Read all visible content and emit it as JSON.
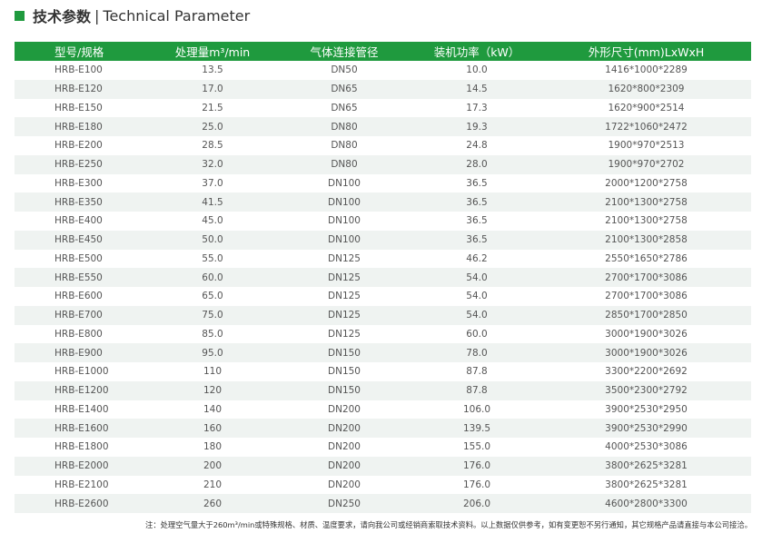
{
  "title": {
    "zh": "技术参数",
    "separator": "|",
    "en": "Technical Parameter"
  },
  "colors": {
    "accent": "#1f9a3e",
    "row_alt": "#eff3f1"
  },
  "table": {
    "headers": [
      "型号/规格",
      "处理量m³/min",
      "气体连接管径",
      "装机功率（kW）",
      "外形尺寸(mm)LxWxH"
    ],
    "rows": [
      [
        "HRB-E100",
        "13.5",
        "DN50",
        "10.0",
        "1416*1000*2289"
      ],
      [
        "HRB-E120",
        "17.0",
        "DN65",
        "14.5",
        "1620*800*2309"
      ],
      [
        "HRB-E150",
        "21.5",
        "DN65",
        "17.3",
        "1620*900*2514"
      ],
      [
        "HRB-E180",
        "25.0",
        "DN80",
        "19.3",
        "1722*1060*2472"
      ],
      [
        "HRB-E200",
        "28.5",
        "DN80",
        "24.8",
        "1900*970*2513"
      ],
      [
        "HRB-E250",
        "32.0",
        "DN80",
        "28.0",
        "1900*970*2702"
      ],
      [
        "HRB-E300",
        "37.0",
        "DN100",
        "36.5",
        "2000*1200*2758"
      ],
      [
        "HRB-E350",
        "41.5",
        "DN100",
        "36.5",
        "2100*1300*2758"
      ],
      [
        "HRB-E400",
        "45.0",
        "DN100",
        "36.5",
        "2100*1300*2758"
      ],
      [
        "HRB-E450",
        "50.0",
        "DN100",
        "36.5",
        "2100*1300*2858"
      ],
      [
        "HRB-E500",
        "55.0",
        "DN125",
        "46.2",
        "2550*1650*2786"
      ],
      [
        "HRB-E550",
        "60.0",
        "DN125",
        "54.0",
        "2700*1700*3086"
      ],
      [
        "HRB-E600",
        "65.0",
        "DN125",
        "54.0",
        "2700*1700*3086"
      ],
      [
        "HRB-E700",
        "75.0",
        "DN125",
        "54.0",
        "2850*1700*2850"
      ],
      [
        "HRB-E800",
        "85.0",
        "DN125",
        "60.0",
        "3000*1900*3026"
      ],
      [
        "HRB-E900",
        "95.0",
        "DN150",
        "78.0",
        "3000*1900*3026"
      ],
      [
        "HRB-E1000",
        "110",
        "DN150",
        "87.8",
        "3300*2200*2692"
      ],
      [
        "HRB-E1200",
        "120",
        "DN150",
        "87.8",
        "3500*2300*2792"
      ],
      [
        "HRB-E1400",
        "140",
        "DN200",
        "106.0",
        "3900*2530*2950"
      ],
      [
        "HRB-E1600",
        "160",
        "DN200",
        "139.5",
        "3900*2530*2990"
      ],
      [
        "HRB-E1800",
        "180",
        "DN200",
        "155.0",
        "4000*2530*3086"
      ],
      [
        "HRB-E2000",
        "200",
        "DN200",
        "176.0",
        "3800*2625*3281"
      ],
      [
        "HRB-E2100",
        "210",
        "DN200",
        "176.0",
        "3800*2625*3281"
      ],
      [
        "HRB-E2600",
        "260",
        "DN250",
        "206.0",
        "4600*2800*3300"
      ]
    ]
  },
  "note": "注：处理空气量大于260m³/min或特殊规格、材质、温度要求，请向我公司或经销商索取技术资料。以上数据仅供参考，如有变更恕不另行通知，其它规格产品请直接与本公司接洽。"
}
